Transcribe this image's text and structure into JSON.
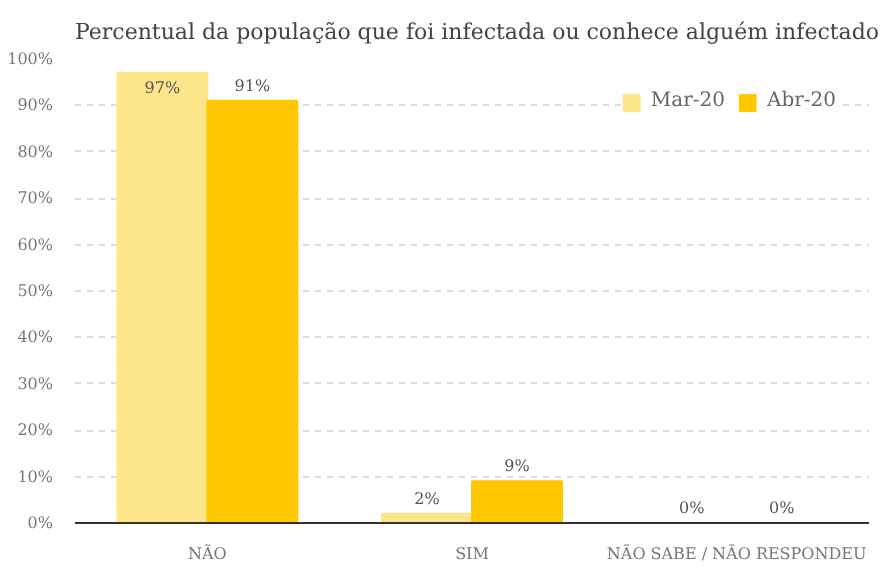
{
  "chart_data": {
    "type": "bar",
    "title": "Percentual da população que foi infectada ou conhece alguém infectado",
    "categories": [
      "NÃO",
      "SIM",
      "NÃO SABE / NÃO RESPONDEU"
    ],
    "series": [
      {
        "name": "Mar-20",
        "color": "#fde58a",
        "values": [
          97,
          2,
          0
        ],
        "value_labels": [
          "97%",
          "2%",
          "0%"
        ]
      },
      {
        "name": "Abr-20",
        "color": "#ffc800",
        "values": [
          91,
          9,
          0
        ],
        "value_labels": [
          "91%",
          "9%",
          "0%"
        ]
      }
    ],
    "ylim": [
      0,
      100
    ],
    "yticks": [
      {
        "value": 0,
        "label": "0%"
      },
      {
        "value": 10,
        "label": "10%"
      },
      {
        "value": 20,
        "label": "20%"
      },
      {
        "value": 30,
        "label": "30%"
      },
      {
        "value": 40,
        "label": "40%"
      },
      {
        "value": 50,
        "label": "50%"
      },
      {
        "value": 60,
        "label": "60%"
      },
      {
        "value": 70,
        "label": "70%"
      },
      {
        "value": 80,
        "label": "80%"
      },
      {
        "value": 90,
        "label": "90%"
      },
      {
        "value": 100,
        "label": "100%"
      }
    ],
    "grid": "y",
    "legend": "top right"
  }
}
